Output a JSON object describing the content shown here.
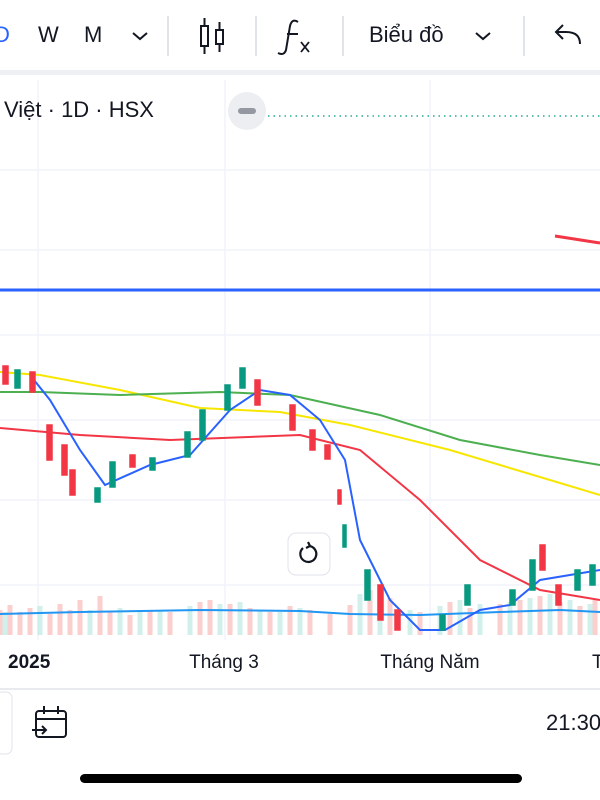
{
  "toolbar": {
    "intervals": [
      "D",
      "W",
      "M"
    ],
    "chart_menu": "Biểu đồ"
  },
  "legend": {
    "symbol": "Việt · 1D · HSX"
  },
  "x_axis": {
    "labels": [
      "2025",
      "Tháng 3",
      "Tháng Năm",
      "T"
    ]
  },
  "footer": {
    "time": "21:30"
  }
}
